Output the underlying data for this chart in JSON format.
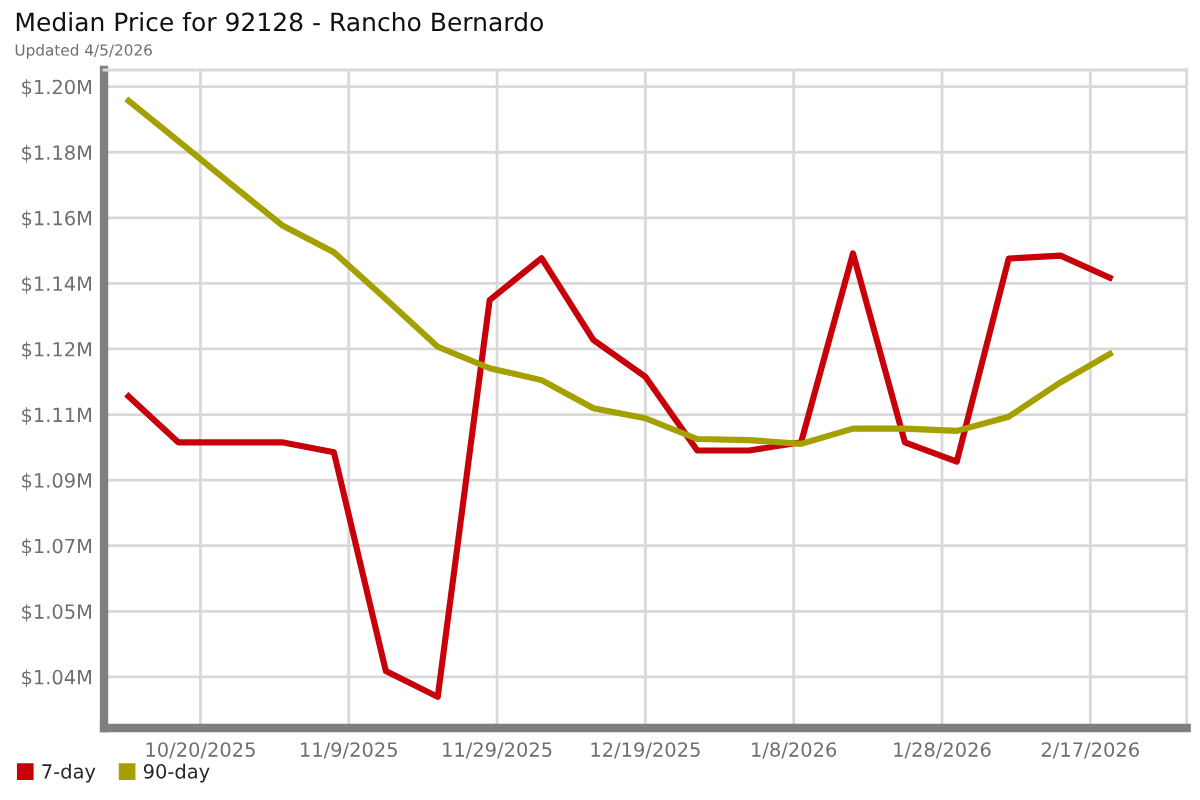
{
  "chart_data": {
    "type": "line",
    "title": "Median Price for 92128 - Rancho Bernardo",
    "subtitle": "Updated 4/5/2026",
    "x": [
      "2025-10-10",
      "2025-10-17",
      "2025-10-24",
      "2025-10-31",
      "2025-11-07",
      "2025-11-14",
      "2025-11-21",
      "2025-11-28",
      "2025-12-05",
      "2025-12-12",
      "2025-12-19",
      "2025-12-26",
      "2026-01-02",
      "2026-01-09",
      "2026-01-16",
      "2026-01-23",
      "2026-01-30",
      "2026-02-06",
      "2026-02-13",
      "2026-02-20"
    ],
    "series": [
      {
        "name": "7-day",
        "color": "#c8000a",
        "values": [
          1.1123,
          1.0993,
          1.0993,
          1.0993,
          1.0966,
          1.0376,
          1.0306,
          1.1377,
          1.149,
          1.1269,
          1.117,
          1.0971,
          1.0971,
          1.0993,
          1.1503,
          1.0993,
          1.0941,
          1.1489,
          1.1497,
          1.1434
        ]
      },
      {
        "name": "90-day",
        "color": "#a3a000",
        "values": [
          1.192,
          1.1807,
          1.1692,
          1.1579,
          1.1506,
          1.138,
          1.1251,
          1.1193,
          1.1161,
          1.1085,
          1.1058,
          1.1002,
          1.0999,
          1.0989,
          1.103,
          1.103,
          1.1024,
          1.1062,
          1.1155,
          1.1236
        ]
      }
    ],
    "xlim": [
      "2025-10-07",
      "2026-03-02"
    ],
    "xticks": [
      {
        "value": "2025-10-20",
        "label": "10/20/2025"
      },
      {
        "value": "2025-11-09",
        "label": "11/9/2025"
      },
      {
        "value": "2025-11-29",
        "label": "11/29/2025"
      },
      {
        "value": "2025-12-19",
        "label": "12/19/2025"
      },
      {
        "value": "2026-01-08",
        "label": "1/8/2026"
      },
      {
        "value": "2026-01-28",
        "label": "1/28/2026"
      },
      {
        "value": "2026-02-17",
        "label": "2/17/2026"
      }
    ],
    "ylim": [
      1.0222,
      1.1998
    ],
    "yticks": [
      {
        "value": 1.036,
        "label": "$1.04M"
      },
      {
        "value": 1.0537,
        "label": "$1.05M"
      },
      {
        "value": 1.0714,
        "label": "$1.07M"
      },
      {
        "value": 1.0891,
        "label": "$1.09M"
      },
      {
        "value": 1.1068,
        "label": "$1.11M"
      },
      {
        "value": 1.1245,
        "label": "$1.12M"
      },
      {
        "value": 1.1422,
        "label": "$1.14M"
      },
      {
        "value": 1.1599,
        "label": "$1.16M"
      },
      {
        "value": 1.1776,
        "label": "$1.18M"
      },
      {
        "value": 1.1953,
        "label": "$1.20M"
      }
    ],
    "grid": true,
    "legend": "bottom",
    "line_style": "solid"
  }
}
